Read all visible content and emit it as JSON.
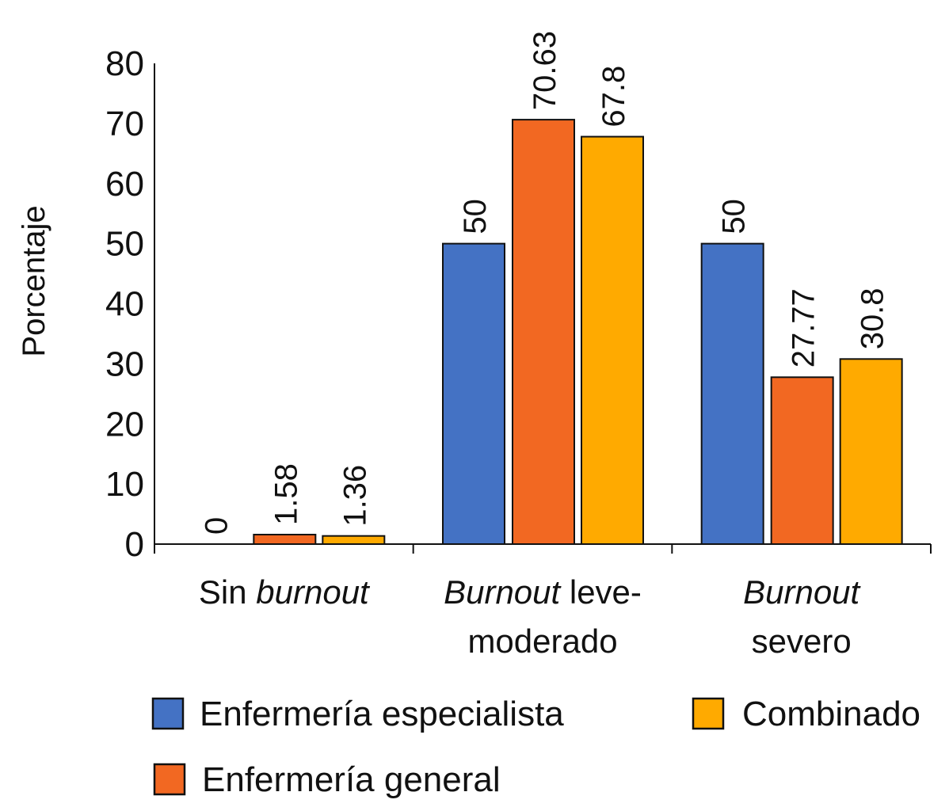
{
  "chart_data": {
    "type": "bar",
    "ylabel": "Porcentaje",
    "ylim": [
      0,
      80
    ],
    "yticks": [
      "0",
      "10",
      "20",
      "30",
      "40",
      "50",
      "60",
      "70",
      "80"
    ],
    "categories": [
      [
        [
          {
            "t": "Sin ",
            "i": false
          },
          {
            "t": "burnout",
            "i": true
          }
        ]
      ],
      [
        [
          {
            "t": "Burnout",
            "i": true
          },
          {
            "t": " leve-",
            "i": false
          }
        ],
        [
          {
            "t": "moderado",
            "i": false
          }
        ]
      ],
      [
        [
          {
            "t": "Burnout",
            "i": true
          }
        ],
        [
          {
            "t": "severo",
            "i": false
          }
        ]
      ]
    ],
    "series": [
      {
        "name": "Enfermería especialista",
        "color": "#4472C4",
        "values": [
          0,
          50,
          50
        ],
        "labels": [
          "0",
          "50",
          "50"
        ]
      },
      {
        "name": "Enfermería general",
        "color": "#F26822",
        "values": [
          1.58,
          70.63,
          27.77
        ],
        "labels": [
          "1.58",
          "70.63",
          "27.77"
        ]
      },
      {
        "name": "Combinado",
        "color": "#FFAA00",
        "values": [
          1.36,
          67.8,
          30.8
        ],
        "labels": [
          "1.36",
          "67.8",
          "30.8"
        ]
      }
    ],
    "legend_position": "bottom"
  }
}
